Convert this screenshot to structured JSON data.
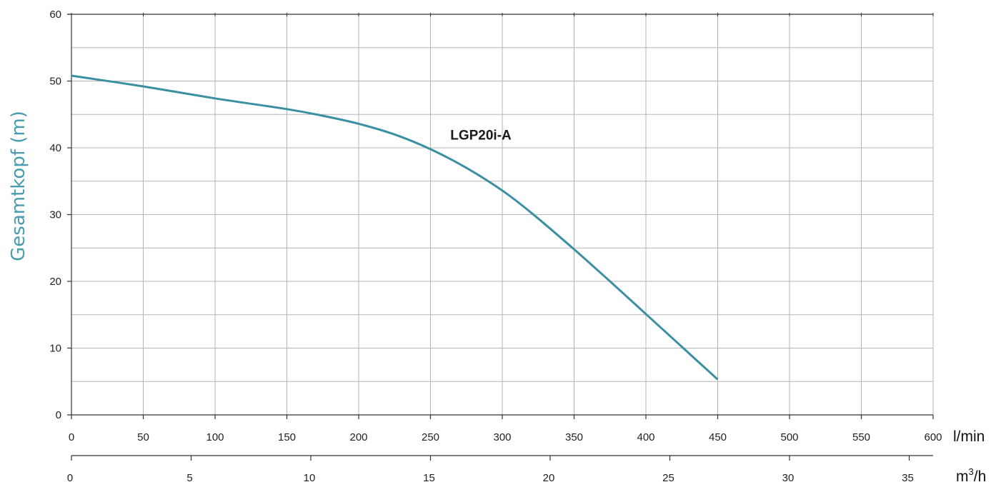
{
  "chart_data": {
    "type": "line",
    "title": "",
    "ylabel": "Gesamtkopf (m)",
    "ylim": [
      0,
      60
    ],
    "y_ticks": [
      0,
      10,
      20,
      30,
      40,
      50,
      60
    ],
    "y_minor_step": 5,
    "x_primary": {
      "unit": "l/min",
      "lim": [
        0,
        600
      ],
      "ticks": [
        0,
        50,
        100,
        150,
        200,
        250,
        300,
        350,
        400,
        450,
        500,
        550,
        600
      ]
    },
    "x_secondary": {
      "unit_base": "m",
      "unit_sup": "3",
      "unit_tail": "/h",
      "lim": [
        0,
        36
      ],
      "ticks": [
        0,
        5,
        10,
        15,
        20,
        25,
        30,
        35
      ]
    },
    "grid": true,
    "series": [
      {
        "name": "LGP20i-A",
        "color": "#3a8fa3",
        "x": [
          0,
          50,
          100,
          150,
          175,
          200,
          225,
          250,
          275,
          300,
          320,
          350,
          375,
          400,
          425,
          450
        ],
        "y": [
          50.8,
          49.2,
          47.4,
          45.8,
          44.8,
          43.6,
          42.0,
          39.8,
          37.0,
          33.6,
          30.3,
          24.8,
          20.0,
          15.1,
          10.2,
          5.3
        ]
      }
    ],
    "series_label_anchor": {
      "x": 300,
      "y": 42
    }
  },
  "colors": {
    "axis": "#333333",
    "grid": "#b5b5b5",
    "ylabel": "#4a9bb0"
  }
}
